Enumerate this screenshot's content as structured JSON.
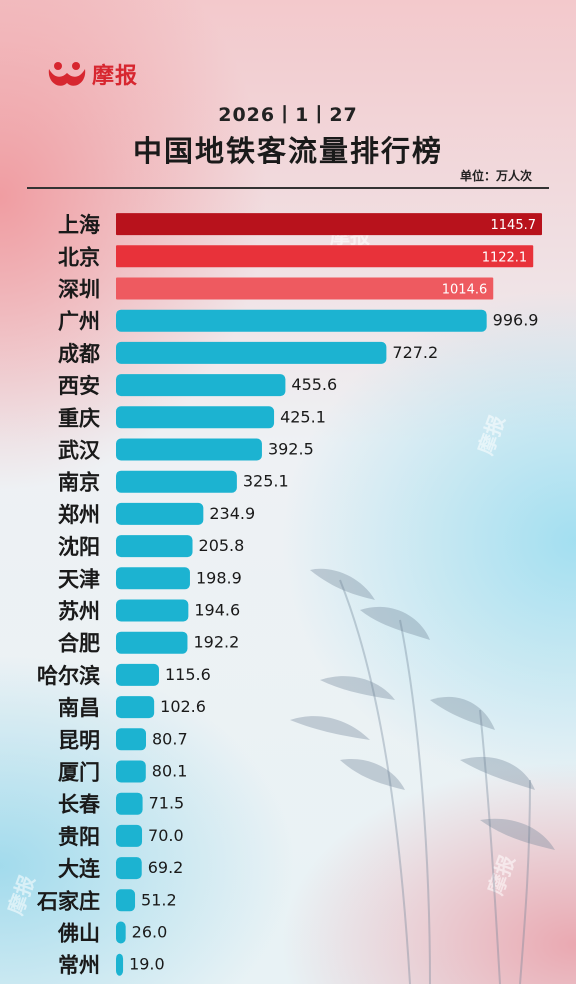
{
  "brand": {
    "name": "摩报",
    "logo_icon": "mobao-logo-icon",
    "color": "#d7262f"
  },
  "header": {
    "date": "2026丨1丨27",
    "title": "中国地铁客流量排行榜",
    "unit": "单位：万人次"
  },
  "chart_data": {
    "type": "bar",
    "orientation": "horizontal",
    "title": "中国地铁客流量排行榜",
    "unit": "单位：万人次",
    "categories": [
      "上海",
      "北京",
      "深圳",
      "广州",
      "成都",
      "西安",
      "重庆",
      "武汉",
      "南京",
      "郑州",
      "沈阳",
      "天津",
      "苏州",
      "合肥",
      "哈尔滨",
      "南昌",
      "昆明",
      "厦门",
      "长春",
      "贵阳",
      "大连",
      "石家庄",
      "佛山",
      "常州"
    ],
    "values": [
      1145.7,
      1122.1,
      1014.6,
      996.9,
      727.2,
      455.6,
      425.1,
      392.5,
      325.1,
      234.9,
      205.8,
      198.9,
      194.6,
      192.2,
      115.6,
      102.6,
      80.7,
      80.1,
      71.5,
      70.0,
      69.2,
      51.2,
      26.0,
      19.0
    ],
    "labels": [
      "1145.7",
      "1122.1",
      "1014.6",
      "996.9",
      "727.2",
      "455.6",
      "425.1",
      "392.5",
      "325.1",
      "234.9",
      "205.8",
      "198.9",
      "194.6",
      "192.2",
      "115.6",
      "102.6",
      "80.7",
      "80.1",
      "71.5",
      "70.0",
      "69.2",
      "51.2",
      "26.0",
      "19.0"
    ],
    "colors": [
      "#b8121c",
      "#e8323a",
      "#ee5a60",
      "#1cb3d1",
      "#1cb3d1",
      "#1cb3d1",
      "#1cb3d1",
      "#1cb3d1",
      "#1cb3d1",
      "#1cb3d1",
      "#1cb3d1",
      "#1cb3d1",
      "#1cb3d1",
      "#1cb3d1",
      "#1cb3d1",
      "#1cb3d1",
      "#1cb3d1",
      "#1cb3d1",
      "#1cb3d1",
      "#1cb3d1",
      "#1cb3d1",
      "#1cb3d1",
      "#1cb3d1",
      "#1cb3d1"
    ],
    "xlim": [
      0,
      1145.7
    ],
    "grid": false,
    "legend": "none"
  },
  "watermarks": [
    "摩报",
    "摩报",
    "摩报",
    "摩报"
  ]
}
